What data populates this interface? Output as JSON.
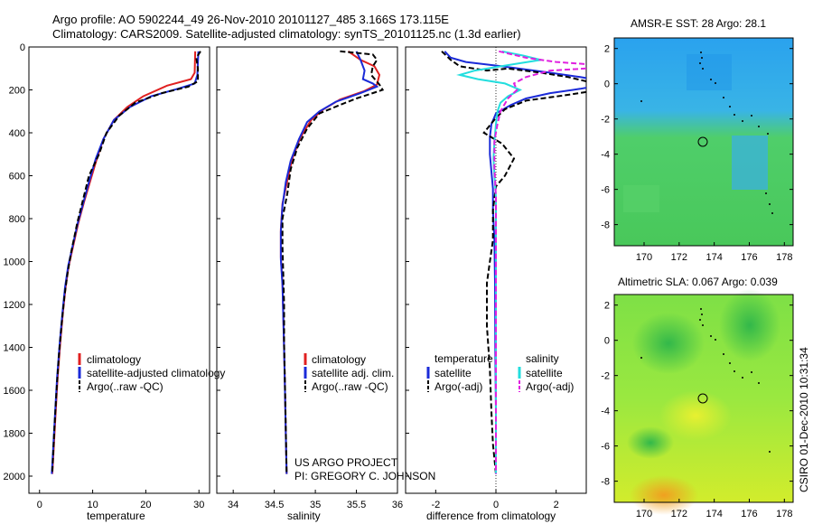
{
  "title": {
    "line1": "Argo profile: AO 5902244_49 26-Nov-2010 20101127_485 3.166S 173.115E",
    "line2": "Climatology: CARS2009. Satellite-adjusted climatology: synTS_20101125.nc (1.3d earlier)"
  },
  "side_label": "CSIRO 01-Dec-2010 10:31:34",
  "colors": {
    "climatology": "#e02020",
    "satellite": "#1a2ad8",
    "argo": "#000000",
    "sal_satellite": "#22dede",
    "sal_argo": "#e020e0"
  },
  "depth_ticks": [
    "0",
    "200",
    "400",
    "600",
    "800",
    "1000",
    "1200",
    "1400",
    "1600",
    "1800",
    "2000"
  ],
  "chart_data": [
    {
      "type": "line",
      "id": "temperature",
      "xlabel": "temperature",
      "xlim": [
        -2,
        32
      ],
      "ylim": [
        0,
        2080
      ],
      "xticks": [
        "0",
        "10",
        "20",
        "30"
      ],
      "xtick_values": [
        0,
        10,
        20,
        30
      ],
      "legend": [
        "climatology",
        "satellite-adjusted climatology",
        "Argo(..raw -QC)"
      ],
      "series": [
        {
          "name": "climatology",
          "color_key": "climatology",
          "dash": "",
          "points": [
            [
              29.3,
              20
            ],
            [
              29.2,
              120
            ],
            [
              28.5,
              150
            ],
            [
              24,
              180
            ],
            [
              19.5,
              230
            ],
            [
              16.5,
              280
            ],
            [
              14,
              340
            ],
            [
              12,
              430
            ],
            [
              10.8,
              520
            ],
            [
              9.6,
              620
            ],
            [
              8.4,
              720
            ],
            [
              7.3,
              820
            ],
            [
              6.4,
              920
            ],
            [
              5.5,
              1020
            ],
            [
              4.9,
              1120
            ],
            [
              4.4,
              1240
            ],
            [
              3.9,
              1380
            ],
            [
              3.4,
              1540
            ],
            [
              3.0,
              1720
            ],
            [
              2.6,
              1900
            ],
            [
              2.4,
              1990
            ]
          ]
        },
        {
          "name": "satellite-adjusted climatology",
          "color_key": "satellite",
          "dash": "",
          "points": [
            [
              29.9,
              20
            ],
            [
              29.7,
              130
            ],
            [
              29.2,
              170
            ],
            [
              26,
              195
            ],
            [
              21,
              230
            ],
            [
              17,
              280
            ],
            [
              14,
              340
            ],
            [
              12,
              430
            ],
            [
              10.6,
              520
            ],
            [
              9.4,
              620
            ],
            [
              8.3,
              720
            ],
            [
              7.2,
              820
            ],
            [
              6.3,
              920
            ],
            [
              5.4,
              1020
            ],
            [
              4.8,
              1120
            ],
            [
              4.3,
              1240
            ],
            [
              3.8,
              1380
            ],
            [
              3.3,
              1540
            ],
            [
              2.9,
              1720
            ],
            [
              2.5,
              1900
            ],
            [
              2.3,
              1990
            ]
          ]
        },
        {
          "name": "Argo(..raw -QC)",
          "color_key": "argo",
          "dash": "6,3",
          "points": [
            [
              30.3,
              20
            ],
            [
              29.5,
              50
            ],
            [
              29.8,
              100
            ],
            [
              29.8,
              160
            ],
            [
              28,
              185
            ],
            [
              23,
              215
            ],
            [
              18,
              260
            ],
            [
              15,
              320
            ],
            [
              12.6,
              400
            ],
            [
              11.2,
              500
            ],
            [
              9.3,
              600
            ],
            [
              8.3,
              700
            ],
            [
              7.1,
              820
            ],
            [
              6.0,
              950
            ],
            [
              5.3,
              1050
            ],
            [
              4.7,
              1160
            ],
            [
              4.2,
              1280
            ],
            [
              3.7,
              1420
            ],
            [
              3.2,
              1600
            ],
            [
              2.8,
              1780
            ],
            [
              2.4,
              1980
            ]
          ]
        }
      ]
    },
    {
      "type": "line",
      "id": "salinity",
      "xlabel": "salinity",
      "xlim": [
        33.8,
        36.0
      ],
      "ylim": [
        0,
        2080
      ],
      "xticks": [
        "34",
        "34.5",
        "35",
        "35.5",
        "36"
      ],
      "xtick_values": [
        34,
        34.5,
        35,
        35.5,
        36
      ],
      "legend": [
        "climatology",
        "satellite adj. clim.",
        "Argo(..raw -QC)"
      ],
      "annotation": [
        "US ARGO PROJECT",
        "PI: GREGORY C. JOHNSON"
      ],
      "series": [
        {
          "name": "climatology",
          "color_key": "climatology",
          "dash": "",
          "points": [
            [
              35.4,
              20
            ],
            [
              35.55,
              60
            ],
            [
              35.72,
              90
            ],
            [
              35.78,
              130
            ],
            [
              35.75,
              175
            ],
            [
              35.6,
              205
            ],
            [
              35.3,
              245
            ],
            [
              35.1,
              290
            ],
            [
              34.95,
              340
            ],
            [
              34.82,
              420
            ],
            [
              34.72,
              520
            ],
            [
              34.66,
              620
            ],
            [
              34.6,
              730
            ],
            [
              34.58,
              850
            ],
            [
              34.58,
              980
            ],
            [
              34.6,
              1100
            ],
            [
              34.61,
              1250
            ],
            [
              34.62,
              1400
            ],
            [
              34.63,
              1600
            ],
            [
              34.64,
              1800
            ],
            [
              34.65,
              1990
            ]
          ]
        },
        {
          "name": "satellite adj. clim.",
          "color_key": "satellite",
          "dash": "",
          "points": [
            [
              35.5,
              20
            ],
            [
              35.55,
              60
            ],
            [
              35.6,
              110
            ],
            [
              35.58,
              150
            ],
            [
              35.7,
              170
            ],
            [
              35.75,
              185
            ],
            [
              35.55,
              215
            ],
            [
              35.25,
              255
            ],
            [
              35.05,
              300
            ],
            [
              34.9,
              350
            ],
            [
              34.8,
              430
            ],
            [
              34.7,
              530
            ],
            [
              34.64,
              630
            ],
            [
              34.6,
              740
            ],
            [
              34.58,
              860
            ],
            [
              34.58,
              990
            ],
            [
              34.6,
              1110
            ],
            [
              34.61,
              1260
            ],
            [
              34.62,
              1410
            ],
            [
              34.63,
              1610
            ],
            [
              34.64,
              1810
            ],
            [
              34.65,
              1990
            ]
          ]
        },
        {
          "name": "Argo(..raw -QC)",
          "color_key": "argo",
          "dash": "6,3",
          "points": [
            [
              35.3,
              20
            ],
            [
              35.7,
              35
            ],
            [
              35.75,
              60
            ],
            [
              35.7,
              90
            ],
            [
              35.68,
              130
            ],
            [
              35.78,
              175
            ],
            [
              35.82,
              200
            ],
            [
              35.5,
              240
            ],
            [
              35.3,
              270
            ],
            [
              35.05,
              310
            ],
            [
              34.9,
              380
            ],
            [
              34.78,
              470
            ],
            [
              34.7,
              570
            ],
            [
              34.66,
              680
            ],
            [
              34.6,
              800
            ],
            [
              34.6,
              930
            ],
            [
              34.61,
              1060
            ],
            [
              34.62,
              1200
            ],
            [
              34.62,
              1380
            ],
            [
              34.63,
              1580
            ],
            [
              34.64,
              1780
            ],
            [
              34.65,
              1990
            ]
          ]
        }
      ]
    },
    {
      "type": "line",
      "id": "difference",
      "xlabel": "difference from climatology",
      "xlim": [
        -3,
        3
      ],
      "ylim": [
        0,
        2080
      ],
      "xticks": [
        "-2",
        "0",
        "2"
      ],
      "xtick_values": [
        -2,
        0,
        2
      ],
      "legend_temperature_title": "temperature",
      "legend_temperature": [
        "satellite",
        "Argo(-adj)"
      ],
      "legend_salinity_title": "salinity",
      "legend_salinity": [
        "satellite",
        "Argo(-adj)"
      ],
      "series": [
        {
          "name": "temperature satellite",
          "color_key": "satellite",
          "dash": "",
          "points": [
            [
              -1.7,
              20
            ],
            [
              -1.5,
              50
            ],
            [
              -1.0,
              70
            ],
            [
              0.2,
              90
            ],
            [
              1.8,
              120
            ],
            [
              2.8,
              140
            ],
            [
              3.2,
              150
            ]
          ]
        },
        {
          "name": "temperature satellite lower",
          "color_key": "satellite",
          "dash": "",
          "points": [
            [
              3.2,
              185
            ],
            [
              2.8,
              195
            ],
            [
              1.8,
              215
            ],
            [
              1.0,
              240
            ],
            [
              0.5,
              270
            ],
            [
              0.0,
              310
            ],
            [
              -0.15,
              360
            ],
            [
              -0.2,
              420
            ],
            [
              -0.2,
              500
            ],
            [
              -0.15,
              580
            ],
            [
              -0.1,
              660
            ],
            [
              -0.1,
              760
            ],
            [
              -0.05,
              900
            ],
            [
              -0.03,
              1100
            ],
            [
              -0.02,
              1400
            ],
            [
              0.0,
              1700
            ],
            [
              0.0,
              1990
            ]
          ]
        },
        {
          "name": "temperature Argo(-adj)",
          "color_key": "argo",
          "dash": "6,3",
          "points": [
            [
              -1.8,
              20
            ],
            [
              -1.5,
              60
            ],
            [
              -1.2,
              90
            ],
            [
              -0.3,
              110
            ],
            [
              0.4,
              100
            ],
            [
              1.5,
              120
            ],
            [
              2.4,
              140
            ],
            [
              3.0,
              160
            ]
          ]
        },
        {
          "name": "temperature Argo(-adj) lower",
          "color_key": "argo",
          "dash": "6,3",
          "points": [
            [
              3.0,
              210
            ],
            [
              2.3,
              225
            ],
            [
              1.0,
              250
            ],
            [
              0.3,
              290
            ],
            [
              0.0,
              330
            ],
            [
              -0.4,
              400
            ],
            [
              0.2,
              450
            ],
            [
              0.6,
              520
            ],
            [
              0.3,
              600
            ],
            [
              0.0,
              650
            ],
            [
              -0.1,
              760
            ],
            [
              -0.1,
              900
            ],
            [
              -0.2,
              1000
            ],
            [
              -0.3,
              1100
            ],
            [
              -0.3,
              1300
            ],
            [
              -0.2,
              1500
            ],
            [
              -0.15,
              1700
            ],
            [
              -0.1,
              1850
            ],
            [
              0.0,
              1990
            ]
          ]
        },
        {
          "name": "salinity satellite",
          "color_key": "sal_satellite",
          "dash": "",
          "points": [
            [
              0.2,
              20
            ],
            [
              0.9,
              40
            ],
            [
              1.5,
              60
            ],
            [
              0.6,
              80
            ],
            [
              -0.7,
              110
            ],
            [
              -1.2,
              130
            ],
            [
              -0.6,
              150
            ],
            [
              0.3,
              170
            ],
            [
              0.8,
              200
            ],
            [
              0.4,
              230
            ],
            [
              0.15,
              260
            ],
            [
              0.05,
              300
            ],
            [
              0.0,
              360
            ],
            [
              -0.05,
              440
            ],
            [
              -0.08,
              520
            ],
            [
              -0.05,
              600
            ],
            [
              0.0,
              700
            ],
            [
              0.0,
              900
            ],
            [
              0.0,
              1200
            ],
            [
              0.0,
              1500
            ],
            [
              0.0,
              1800
            ],
            [
              0.0,
              1990
            ]
          ]
        },
        {
          "name": "salinity Argo(-adj)",
          "color_key": "sal_argo",
          "dash": "6,3",
          "points": [
            [
              0.1,
              20
            ],
            [
              1.0,
              50
            ],
            [
              2.0,
              70
            ],
            [
              3.0,
              80
            ]
          ]
        },
        {
          "name": "salinity Argo(-adj) lower",
          "color_key": "sal_argo",
          "dash": "6,3",
          "points": [
            [
              3.0,
              100
            ],
            [
              1.8,
              110
            ],
            [
              1.0,
              140
            ],
            [
              0.6,
              170
            ],
            [
              0.7,
              200
            ],
            [
              0.4,
              240
            ],
            [
              0.15,
              300
            ],
            [
              0.05,
              360
            ],
            [
              -0.05,
              440
            ],
            [
              -0.05,
              560
            ],
            [
              0.0,
              700
            ],
            [
              0.0,
              900
            ],
            [
              0.0,
              1200
            ],
            [
              0.0,
              1500
            ],
            [
              0.0,
              1800
            ],
            [
              0.0,
              1990
            ]
          ]
        }
      ]
    },
    {
      "type": "heatmap",
      "id": "sst_map",
      "title": "AMSR-E SST: 28 Argo: 28.1",
      "xticks": [
        "170",
        "172",
        "174",
        "176",
        "178"
      ],
      "yticks": [
        "2",
        "0",
        "-2",
        "-4",
        "-6",
        "-8"
      ],
      "float_position": [
        173.115,
        -3.166
      ]
    },
    {
      "type": "heatmap",
      "id": "sla_map",
      "title": "Altimetric SLA: 0.067 Argo: 0.039",
      "xticks": [
        "170",
        "172",
        "174",
        "176",
        "178"
      ],
      "yticks": [
        "2",
        "0",
        "-2",
        "-4",
        "-6",
        "-8"
      ],
      "float_position": [
        173.115,
        -3.166
      ]
    }
  ]
}
